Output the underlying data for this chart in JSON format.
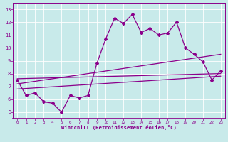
{
  "xlabel": "Windchill (Refroidissement éolien,°C)",
  "background_color": "#c8eaea",
  "line_color": "#8b008b",
  "x_ticks": [
    0,
    1,
    2,
    3,
    4,
    5,
    6,
    7,
    8,
    9,
    10,
    11,
    12,
    13,
    14,
    15,
    16,
    17,
    18,
    19,
    20,
    21,
    22,
    23
  ],
  "ylim": [
    4.5,
    13.5
  ],
  "xlim": [
    -0.5,
    23.5
  ],
  "yticks": [
    5,
    6,
    7,
    8,
    9,
    10,
    11,
    12,
    13
  ],
  "series1_x": [
    0,
    1,
    2,
    3,
    4,
    5,
    6,
    7,
    8,
    9,
    10,
    11,
    12,
    13,
    14,
    15,
    16,
    17,
    18,
    19,
    20,
    21,
    22,
    23
  ],
  "series1_y": [
    7.5,
    6.3,
    6.5,
    5.8,
    5.7,
    5.0,
    6.3,
    6.1,
    6.3,
    8.8,
    10.7,
    12.3,
    11.9,
    12.6,
    11.2,
    11.5,
    11.0,
    11.15,
    12.0,
    10.0,
    9.5,
    8.9,
    7.5,
    8.2
  ],
  "line1_x": [
    0,
    23
  ],
  "line1_y": [
    6.8,
    7.8
  ],
  "line2_x": [
    0,
    23
  ],
  "line2_y": [
    7.2,
    9.5
  ],
  "line3_x": [
    0,
    23
  ],
  "line3_y": [
    7.6,
    8.0
  ]
}
